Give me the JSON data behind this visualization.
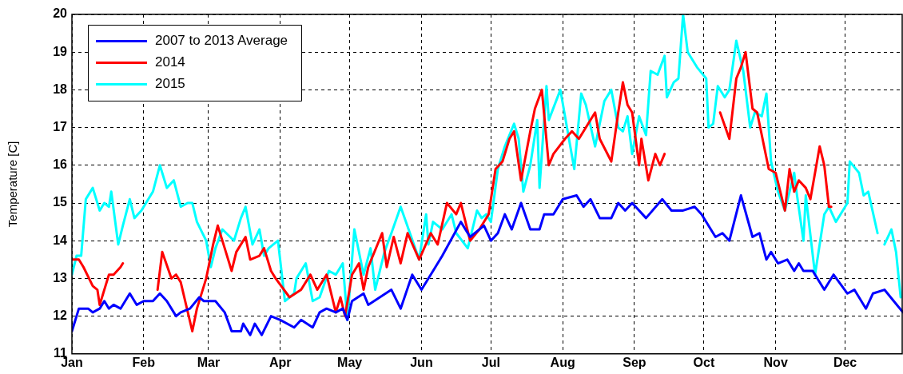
{
  "chart_data": {
    "type": "line",
    "ylabel": "Temperature [C]",
    "xlim": [
      "--01-01",
      "--12-26"
    ],
    "xticks": [
      {
        "value": "--01-01",
        "label": "Jan"
      },
      {
        "value": "--02-01",
        "label": "Feb"
      },
      {
        "value": "--03-01",
        "label": "Mar"
      },
      {
        "value": "--04-01",
        "label": "Apr"
      },
      {
        "value": "--05-01",
        "label": "May"
      },
      {
        "value": "--06-01",
        "label": "Jun"
      },
      {
        "value": "--07-01",
        "label": "Jul"
      },
      {
        "value": "--08-01",
        "label": "Aug"
      },
      {
        "value": "--09-01",
        "label": "Sep"
      },
      {
        "value": "--10-01",
        "label": "Oct"
      },
      {
        "value": "--11-01",
        "label": "Nov"
      },
      {
        "value": "--12-01",
        "label": "Dec"
      }
    ],
    "ylim": [
      11,
      20
    ],
    "yticks": [
      11,
      12,
      13,
      14,
      15,
      16,
      17,
      18,
      19,
      20
    ],
    "grid": true,
    "legend": "top left",
    "marker": "none",
    "line_style": "solid",
    "series": [
      {
        "name": "2007 to 2013 Average",
        "color": "#0000ff",
        "x": [
          "--01-01",
          "--01-04",
          "--01-08",
          "--01-10",
          "--01-13",
          "--01-15",
          "--01-17",
          "--01-19",
          "--01-22",
          "--01-26",
          "--01-29",
          "--02-01",
          "--02-05",
          "--02-08",
          "--02-11",
          "--02-15",
          "--02-17",
          "--02-21",
          "--02-25",
          "--02-27",
          "--03-04",
          "--03-08",
          "--03-11",
          "--03-15",
          "--03-16",
          "--03-19",
          "--03-21",
          "--03-24",
          "--03-28",
          "--04-01",
          "--04-07",
          "--04-10",
          "--04-15",
          "--04-18",
          "--04-21",
          "--04-25",
          "--04-28",
          "--04-30",
          "--05-02",
          "--05-07",
          "--05-09",
          "--05-14",
          "--05-19",
          "--05-23",
          "--05-28",
          "--06-01",
          "--06-06",
          "--06-10",
          "--06-18",
          "--06-22",
          "--06-28",
          "--07-01",
          "--07-04",
          "--07-07",
          "--07-10",
          "--07-14",
          "--07-18",
          "--07-22",
          "--07-24",
          "--07-28",
          "--08-01",
          "--08-07",
          "--08-10",
          "--08-13",
          "--08-17",
          "--08-22",
          "--08-25",
          "--08-28",
          "--08-31",
          "--09-06",
          "--09-13",
          "--09-17",
          "--09-22",
          "--09-27",
          "--09-30",
          "--10-06",
          "--10-09",
          "--10-12",
          "--10-17",
          "--10-22",
          "--10-25",
          "--10-28",
          "--10-30",
          "--11-02",
          "--11-06",
          "--11-09",
          "--11-11",
          "--11-13",
          "--11-17",
          "--11-22",
          "--11-26",
          "--12-02",
          "--12-05",
          "--12-10",
          "--12-13",
          "--12-18",
          "--12-22",
          "--12-26"
        ],
        "values": [
          11.6,
          12.2,
          12.2,
          12.1,
          12.2,
          12.4,
          12.2,
          12.3,
          12.2,
          12.6,
          12.3,
          12.4,
          12.4,
          12.6,
          12.4,
          12.0,
          12.1,
          12.2,
          12.5,
          12.4,
          12.4,
          12.1,
          11.6,
          11.6,
          11.8,
          11.5,
          11.8,
          11.5,
          12.0,
          11.9,
          11.7,
          11.9,
          11.7,
          12.1,
          12.2,
          12.1,
          12.2,
          11.9,
          12.4,
          12.6,
          12.3,
          12.5,
          12.7,
          12.2,
          13.1,
          12.7,
          13.2,
          13.6,
          14.5,
          14.1,
          14.4,
          14.0,
          14.2,
          14.7,
          14.3,
          15.0,
          14.3,
          14.3,
          14.7,
          14.7,
          15.1,
          15.2,
          14.9,
          15.1,
          14.6,
          14.6,
          15.0,
          14.8,
          15.0,
          14.6,
          15.1,
          14.8,
          14.8,
          14.9,
          14.7,
          14.1,
          14.2,
          14.0,
          15.2,
          14.1,
          14.2,
          13.5,
          13.7,
          13.4,
          13.5,
          13.2,
          13.4,
          13.2,
          13.2,
          12.7,
          13.1,
          12.6,
          12.7,
          12.2,
          12.6,
          12.7,
          12.4,
          12.1
        ]
      },
      {
        "name": "2014",
        "color": "#ff0000",
        "x": [
          "--01-01",
          "--01-04",
          "--01-06",
          "--01-10",
          "--01-12",
          "--01-13",
          "--01-17",
          "--01-19",
          "--01-22",
          "--01-23",
          "--01-30",
          "--02-07",
          "--02-09",
          "--02-13",
          "--02-15",
          "--02-17",
          "--02-22",
          "--02-24",
          "--02-28",
          "--03-03",
          "--03-05",
          "--03-08",
          "--03-11",
          "--03-13",
          "--03-17",
          "--03-19",
          "--03-23",
          "--03-25",
          "--03-28",
          "--03-30",
          "--04-05",
          "--04-10",
          "--04-14",
          "--04-17",
          "--04-21",
          "--04-25",
          "--04-27",
          "--04-29",
          "--05-02",
          "--05-05",
          "--05-07",
          "--05-09",
          "--05-15",
          "--05-17",
          "--05-20",
          "--05-23",
          "--05-26",
          "--05-31",
          "--06-05",
          "--06-08",
          "--06-12",
          "--06-16",
          "--06-18",
          "--06-22",
          "--06-26",
          "--06-30",
          "--07-03",
          "--07-06",
          "--07-09",
          "--07-11",
          "--07-14",
          "--07-18",
          "--07-20",
          "--07-23",
          "--07-26",
          "--07-28",
          "--08-02",
          "--08-05",
          "--08-08",
          "--08-15",
          "--08-17",
          "--08-22",
          "--08-25",
          "--08-27",
          "--08-29",
          "--08-31",
          "--09-03",
          "--09-04",
          "--09-07",
          "--09-10",
          "--09-12",
          "--09-14",
          "--09-26",
          "--10-08",
          "--10-12",
          "--10-15",
          "--10-17",
          "--10-19",
          "--10-22",
          "--10-24",
          "--10-27",
          "--10-29",
          "--11-01",
          "--11-05",
          "--11-07",
          "--11-09",
          "--11-11",
          "--11-14",
          "--11-16",
          "--11-20",
          "--11-22",
          "--11-24",
          "--11-25"
        ],
        "values": [
          13.5,
          13.5,
          13.3,
          12.8,
          12.7,
          12.3,
          13.1,
          13.1,
          13.3,
          13.4,
          null,
          12.7,
          13.7,
          13.0,
          13.1,
          12.9,
          11.6,
          12.2,
          13.0,
          13.9,
          14.4,
          13.8,
          13.2,
          13.7,
          14.1,
          13.5,
          13.6,
          13.8,
          13.2,
          13.0,
          12.5,
          12.7,
          13.1,
          12.7,
          13.1,
          12.1,
          12.5,
          12.0,
          13.1,
          13.4,
          12.7,
          13.3,
          14.2,
          13.3,
          14.1,
          13.4,
          14.2,
          13.5,
          14.2,
          13.9,
          15.0,
          14.7,
          15.0,
          14.0,
          14.3,
          14.7,
          15.9,
          16.1,
          16.7,
          16.9,
          15.6,
          16.9,
          17.5,
          18.0,
          16.0,
          16.3,
          16.7,
          16.9,
          16.7,
          17.4,
          16.7,
          16.1,
          17.4,
          18.2,
          17.6,
          17.4,
          16.0,
          16.7,
          15.6,
          16.3,
          16.0,
          16.3,
          null,
          17.4,
          16.7,
          18.3,
          18.6,
          19.0,
          17.5,
          17.4,
          16.5,
          15.9,
          15.8,
          14.8,
          15.9,
          15.3,
          15.6,
          15.4,
          15.1,
          16.5,
          16.0,
          14.9,
          14.9
        ]
      },
      {
        "name": "2015",
        "color": "#00ffff",
        "x": [
          "--01-01",
          "--01-03",
          "--01-05",
          "--01-07",
          "--01-10",
          "--01-13",
          "--01-15",
          "--01-17",
          "--01-18",
          "--01-21",
          "--01-23",
          "--01-26",
          "--01-28",
          "--01-31",
          "--02-05",
          "--02-08",
          "--02-11",
          "--02-14",
          "--02-17",
          "--02-20",
          "--02-22",
          "--02-24",
          "--02-28",
          "--03-02",
          "--03-04",
          "--03-07",
          "--03-12",
          "--03-15",
          "--03-17",
          "--03-20",
          "--03-23",
          "--03-25",
          "--03-27",
          "--03-31",
          "--04-03",
          "--04-07",
          "--04-08",
          "--04-12",
          "--04-15",
          "--04-18",
          "--04-22",
          "--04-25",
          "--04-28",
          "--04-30",
          "--05-03",
          "--05-07",
          "--05-10",
          "--05-12",
          "--05-16",
          "--05-19",
          "--05-23",
          "--05-27",
          "--05-31",
          "--06-03",
          "--06-04",
          "--06-06",
          "--06-10",
          "--06-14",
          "--06-16",
          "--06-21",
          "--06-25",
          "--06-27",
          "--06-29",
          "--07-01",
          "--07-04",
          "--07-07",
          "--07-11",
          "--07-13",
          "--07-15",
          "--07-18",
          "--07-21",
          "--07-22",
          "--07-25",
          "--07-26",
          "--07-31",
          "--08-06",
          "--08-09",
          "--08-11",
          "--08-15",
          "--08-19",
          "--08-22",
          "--08-25",
          "--08-27",
          "--08-29",
          "--08-31",
          "--09-03",
          "--09-06",
          "--09-08",
          "--09-11",
          "--09-14",
          "--09-15",
          "--09-18",
          "--09-20",
          "--09-22",
          "--09-24",
          "--09-28",
          "--10-02",
          "--10-03",
          "--10-05",
          "--10-07",
          "--10-10",
          "--10-12",
          "--10-15",
          "--10-18",
          "--10-21",
          "--10-23",
          "--10-26",
          "--10-28",
          "--10-30",
          "--11-02",
          "--11-05",
          "--11-09",
          "--11-10",
          "--11-13",
          "--11-14",
          "--11-18",
          "--11-22",
          "--11-24",
          "--11-27",
          "--11-29",
          "--12-02",
          "--12-03",
          "--12-07",
          "--12-09",
          "--12-11",
          "--12-15",
          "--12-16",
          "--12-18",
          "--12-21",
          "--12-23",
          "--12-25"
        ],
        "values": [
          13.1,
          13.6,
          13.6,
          15.1,
          15.4,
          14.8,
          15.0,
          14.9,
          15.3,
          13.9,
          14.4,
          15.1,
          14.6,
          14.8,
          15.3,
          16.0,
          15.4,
          15.6,
          14.9,
          15.0,
          15.0,
          14.5,
          14.0,
          13.3,
          13.8,
          14.3,
          14.0,
          14.6,
          14.9,
          13.9,
          14.3,
          13.6,
          13.8,
          14.0,
          12.4,
          12.6,
          13.0,
          13.4,
          12.4,
          12.5,
          13.2,
          13.1,
          13.4,
          11.9,
          14.3,
          13.1,
          13.8,
          12.7,
          13.7,
          14.2,
          14.9,
          14.2,
          13.5,
          14.7,
          13.9,
          14.5,
          14.3,
          14.7,
          14.2,
          13.8,
          14.8,
          14.6,
          14.7,
          14.5,
          15.9,
          16.5,
          17.1,
          16.7,
          15.3,
          16.0,
          17.2,
          15.4,
          18.1,
          17.2,
          18.0,
          15.9,
          17.9,
          17.6,
          16.5,
          17.7,
          18.0,
          17.0,
          16.9,
          17.3,
          16.3,
          17.3,
          16.8,
          18.5,
          18.4,
          18.9,
          17.8,
          18.2,
          18.3,
          20.0,
          19.0,
          18.6,
          18.3,
          17.0,
          17.1,
          18.1,
          17.8,
          18.0,
          19.3,
          18.5,
          17.0,
          17.4,
          17.3,
          17.9,
          16.1,
          15.3,
          14.8,
          15.8,
          15.3,
          14.0,
          15.2,
          13.1,
          14.7,
          14.9,
          14.5,
          14.7,
          15.0,
          16.1,
          15.8,
          15.2,
          15.3,
          14.2,
          null,
          13.9,
          14.3,
          13.7,
          12.5
        ]
      }
    ]
  }
}
